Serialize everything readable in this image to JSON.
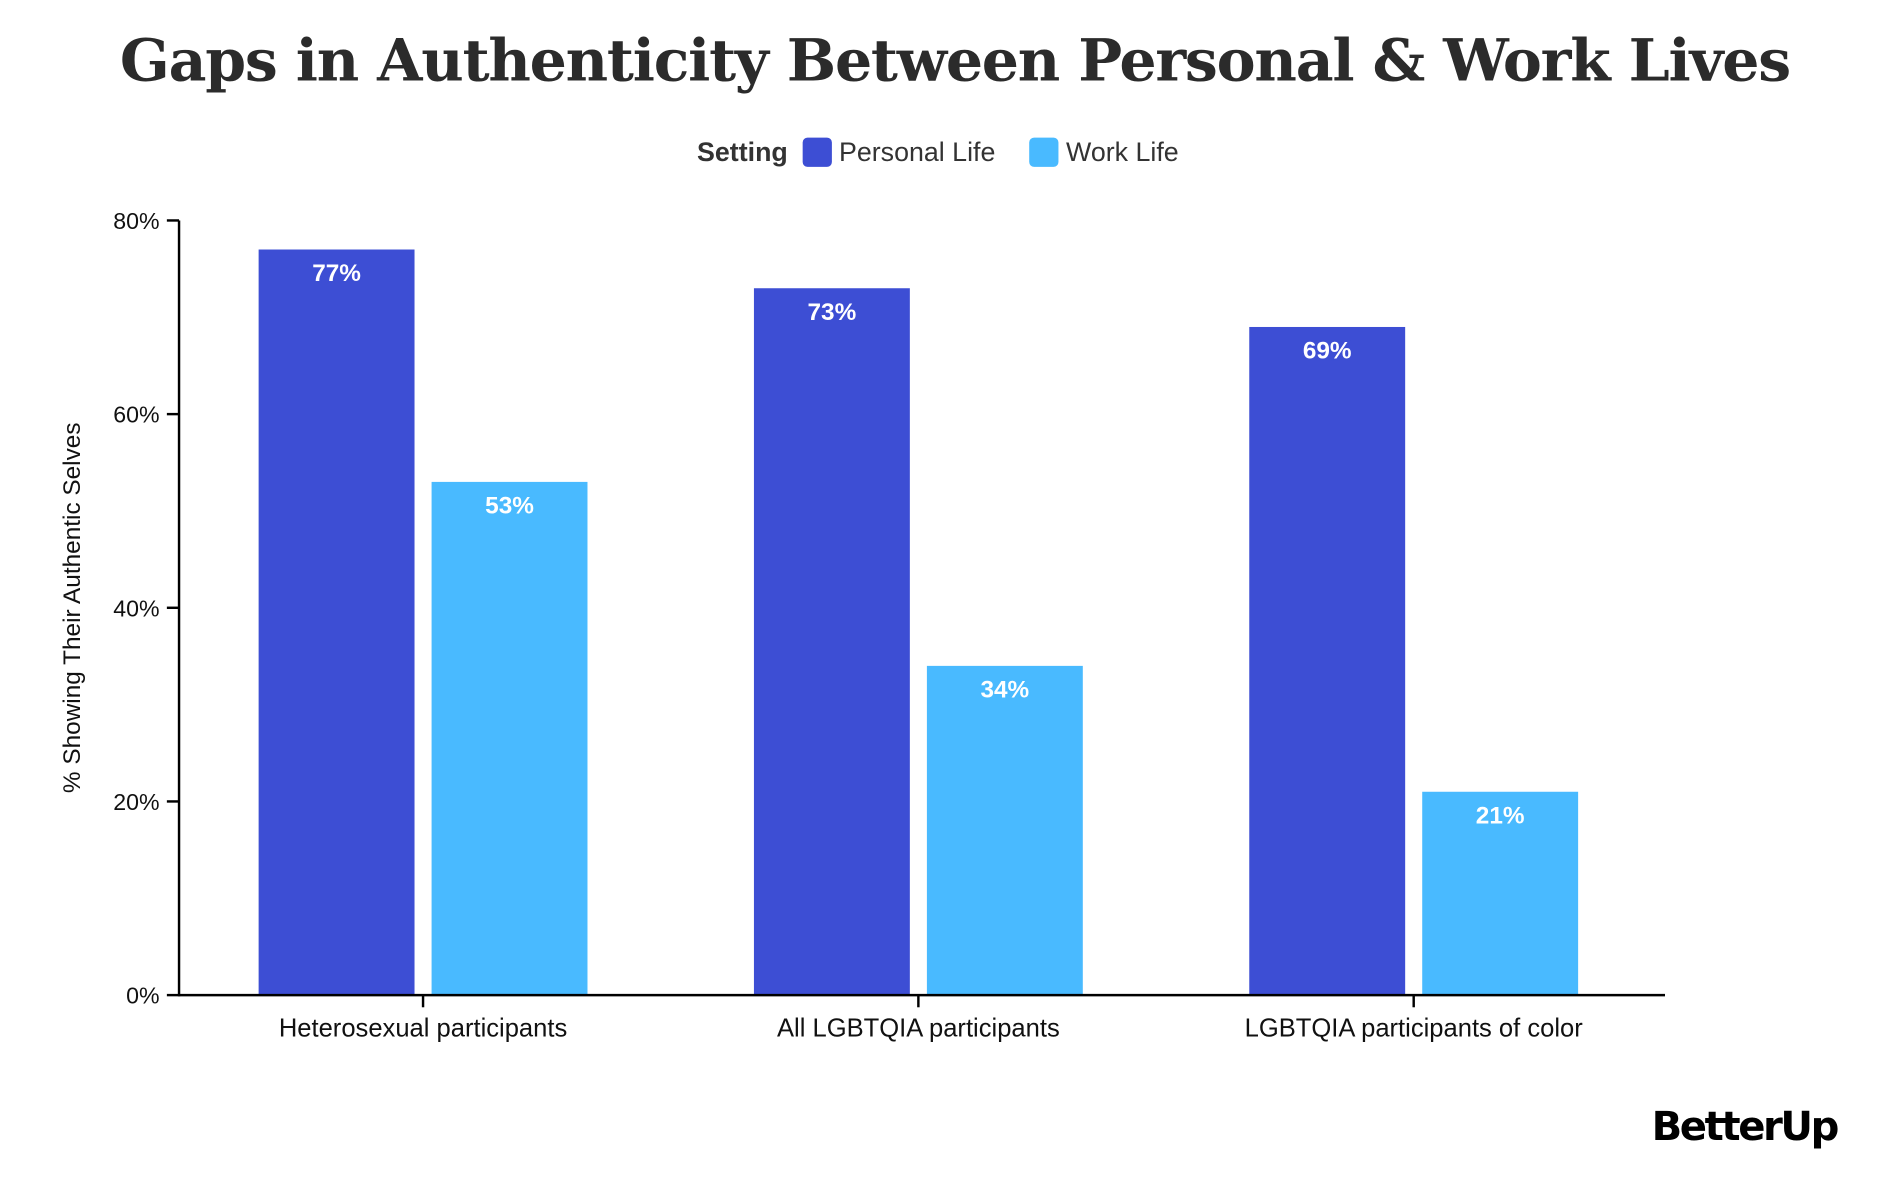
{
  "chart_data": {
    "type": "bar",
    "title": "Gaps in Authenticity Between Personal & Work Lives",
    "legend_title": "Setting",
    "legend_placement": "top",
    "ylabel": "% Showing Their Authentic Selves",
    "xlabel": "",
    "ylim": [
      0,
      80
    ],
    "yticks": [
      "0%",
      "20%",
      "40%",
      "60%",
      "80%"
    ],
    "ytick_values": [
      0,
      20,
      40,
      60,
      80
    ],
    "grid": false,
    "categories": [
      "Heterosexual participants",
      "All LGBTQIA participants",
      "LGBTQIA participants of color"
    ],
    "series": [
      {
        "name": "Personal Life",
        "color": "#3d4ed4",
        "values": [
          77,
          73,
          69
        ],
        "labels": [
          "77%",
          "73%",
          "69%"
        ]
      },
      {
        "name": "Work Life",
        "color": "#49baff",
        "values": [
          53,
          34,
          21
        ],
        "labels": [
          "53%",
          "34%",
          "21%"
        ]
      }
    ]
  },
  "brand": {
    "logo_text": "BetterUp"
  }
}
